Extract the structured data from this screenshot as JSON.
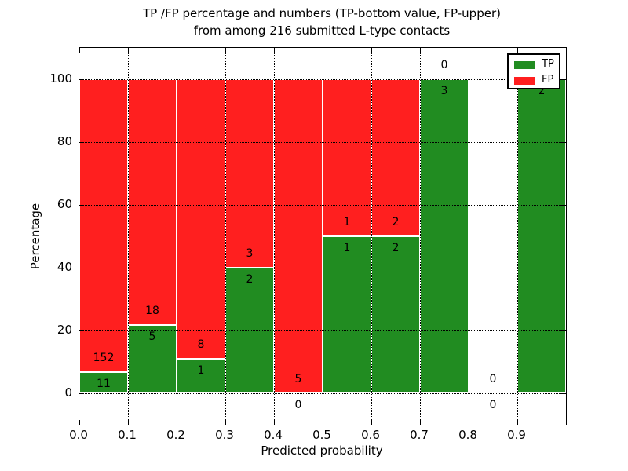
{
  "figure": {
    "title_line1": "TP /FP percentage and numbers (TP-bottom value, FP-upper)",
    "title_line2": "from among 216 submitted L-type contacts",
    "xlabel": "Predicted probability",
    "ylabel": "Percentage"
  },
  "legend": {
    "position": "upper right",
    "items": [
      {
        "label": "TP",
        "color": "#218c21"
      },
      {
        "label": "FP",
        "color": "#ff1f1f"
      }
    ]
  },
  "chart_data": {
    "type": "bar",
    "stacked": true,
    "title": "TP /FP percentage and numbers (TP-bottom value, FP-upper) from among 216 submitted L-type contacts",
    "xlabel": "Predicted probability",
    "ylabel": "Percentage",
    "xlim": [
      0.0,
      1.0
    ],
    "ylim": [
      -10,
      110
    ],
    "grid": true,
    "total_contacts": 216,
    "bin_edges": [
      0.0,
      0.1,
      0.2,
      0.3,
      0.4,
      0.5,
      0.6,
      0.7,
      0.8,
      0.9,
      1.0
    ],
    "categories": [
      "0.0-0.1",
      "0.1-0.2",
      "0.2-0.3",
      "0.3-0.4",
      "0.4-0.5",
      "0.5-0.6",
      "0.6-0.7",
      "0.7-0.8",
      "0.8-0.9",
      "0.9-1.0"
    ],
    "x_ticks": [
      "0.0",
      "0.1",
      "0.2",
      "0.3",
      "0.4",
      "0.5",
      "0.6",
      "0.7",
      "0.8",
      "0.9"
    ],
    "y_ticks": [
      "0",
      "20",
      "40",
      "60",
      "80",
      "100"
    ],
    "series": [
      {
        "name": "TP",
        "color": "#218c21",
        "counts": [
          11,
          5,
          1,
          2,
          0,
          1,
          2,
          3,
          0,
          2
        ],
        "percent": [
          6.75,
          21.74,
          11.11,
          40,
          0,
          50,
          50,
          100,
          0,
          100
        ]
      },
      {
        "name": "FP",
        "color": "#ff1f1f",
        "counts": [
          152,
          18,
          8,
          3,
          5,
          1,
          2,
          0,
          0,
          0
        ],
        "percent": [
          93.25,
          78.26,
          88.89,
          60,
          100,
          50,
          50,
          0,
          0,
          0
        ]
      }
    ],
    "tp_labels": [
      "11",
      "5",
      "1",
      "2",
      "0",
      "1",
      "2",
      "3",
      "0",
      "2"
    ],
    "fp_labels": [
      "152",
      "18",
      "8",
      "3",
      "5",
      "1",
      "2",
      "0",
      "0",
      null
    ]
  }
}
